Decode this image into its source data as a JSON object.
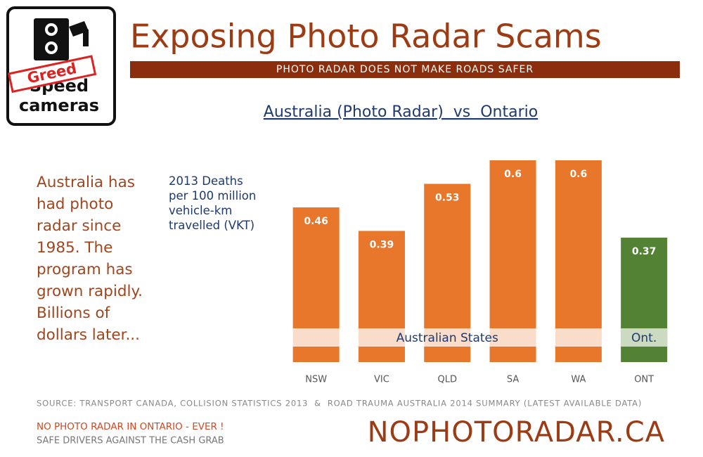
{
  "header": {
    "title": "Exposing Photo Radar Scams",
    "subtitle": "PHOTO RADAR DOES NOT MAKE ROADS SAFER"
  },
  "logo": {
    "stamp": "Greed",
    "line1": "Speed",
    "line2": "cameras"
  },
  "intro": "Australia has had photo radar since 1985. The program has grown rapidly. Billions of dollars later...",
  "chart_data": {
    "type": "bar",
    "title": "Australia (Photo Radar)  vs  Ontario",
    "y_label": "2013 Deaths per 100 million vehicle-km travelled (VKT)",
    "categories": [
      "NSW",
      "VIC",
      "QLD",
      "SA",
      "WA",
      "ONT"
    ],
    "values": [
      0.46,
      0.39,
      0.53,
      0.6,
      0.6,
      0.37
    ],
    "colors": [
      "#e8762b",
      "#e8762b",
      "#e8762b",
      "#e8762b",
      "#e8762b",
      "#548235"
    ],
    "annotations": [
      "Australian States",
      "Ont."
    ]
  },
  "source": "SOURCE: TRANSPORT CANADA, COLLISION STATISTICS 2013  &  ROAD TRAUMA AUSTRALIA 2014 SUMMARY (LATEST AVAILABLE DATA)",
  "footer": {
    "line1": "NO PHOTO RADAR IN ONTARIO - EVER !",
    "line2": "SAFE DRIVERS AGAINST THE CASH GRAB",
    "site": "NOPHOTORADAR.CA"
  }
}
